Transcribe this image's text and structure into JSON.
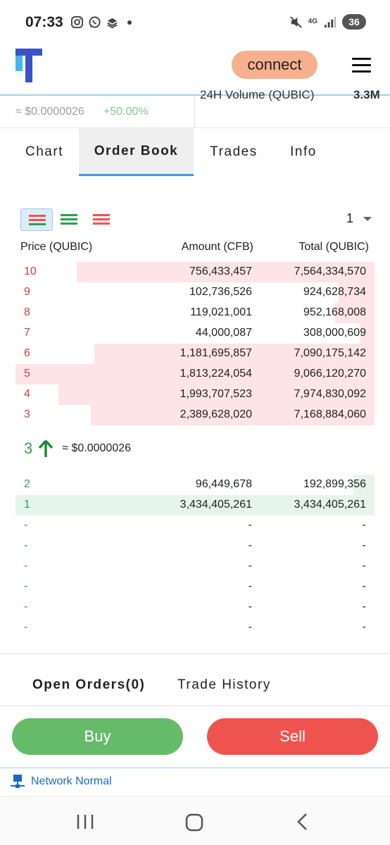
{
  "status_bar": {
    "time": "07:33",
    "battery": "36",
    "network": "4G"
  },
  "header": {
    "connect_label": "connect"
  },
  "summary": {
    "price_usd": "≈ $0.0000026",
    "change": "+50.00%",
    "volume_label": "24H Volume (QUBIC)",
    "volume_value": "3.3M"
  },
  "tabs": [
    {
      "label": "Chart",
      "active": false
    },
    {
      "label": "Order Book",
      "active": true
    },
    {
      "label": "Trades",
      "active": false
    },
    {
      "label": "Info",
      "active": false
    }
  ],
  "order_book": {
    "depth_selector": "1",
    "columns": {
      "price": "Price (QUBIC)",
      "amount": "Amount (CFB)",
      "total": "Total (QUBIC)"
    },
    "asks": [
      {
        "price": "10",
        "amount": "756,433,457",
        "total": "7,564,334,570",
        "depth": 0.83
      },
      {
        "price": "9",
        "amount": "102,736,526",
        "total": "924,628,734",
        "depth": 0.1
      },
      {
        "price": "8",
        "amount": "119,021,001",
        "total": "952,168,008",
        "depth": 0.11
      },
      {
        "price": "7",
        "amount": "44,000,087",
        "total": "308,000,609",
        "depth": 0.04
      },
      {
        "price": "6",
        "amount": "1,181,695,857",
        "total": "7,090,175,142",
        "depth": 0.78
      },
      {
        "price": "5",
        "amount": "1,813,224,054",
        "total": "9,066,120,270",
        "depth": 1.0
      },
      {
        "price": "4",
        "amount": "1,993,707,523",
        "total": "7,974,830,092",
        "depth": 0.88
      },
      {
        "price": "3",
        "amount": "2,389,628,020",
        "total": "7,168,884,060",
        "depth": 0.79
      }
    ],
    "mid": {
      "price": "3",
      "usd": "≈ $0.0000026"
    },
    "bids": [
      {
        "price": "2",
        "amount": "96,449,678",
        "total": "192,899,356",
        "depth": 0.06
      },
      {
        "price": "1",
        "amount": "3,434,405,261",
        "total": "3,434,405,261",
        "depth": 1.0
      },
      {
        "price": "-",
        "amount": "-",
        "total": "-",
        "depth": 0
      },
      {
        "price": "-",
        "amount": "-",
        "total": "-",
        "depth": 0
      },
      {
        "price": "-",
        "amount": "-",
        "total": "-",
        "depth": 0
      },
      {
        "price": "-",
        "amount": "-",
        "total": "-",
        "depth": 0
      },
      {
        "price": "-",
        "amount": "-",
        "total": "-",
        "depth": 0
      },
      {
        "price": "-",
        "amount": "-",
        "total": "-",
        "depth": 0
      }
    ]
  },
  "orders_tabs": [
    {
      "label": "Open Orders(0)",
      "active": true
    },
    {
      "label": "Trade History",
      "active": false
    }
  ],
  "actions": {
    "buy_label": "Buy",
    "sell_label": "Sell"
  },
  "network_status": "Network Normal",
  "colors": {
    "buy": "#66bb6a",
    "sell": "#ef5350",
    "ask_text": "#d04040",
    "bid_text": "#2e9e4e",
    "ask_bg": "#fde4e6",
    "bid_bg": "#e6f5ec",
    "accent": "#3f99e5",
    "connect_bg": "#f7b08e"
  }
}
